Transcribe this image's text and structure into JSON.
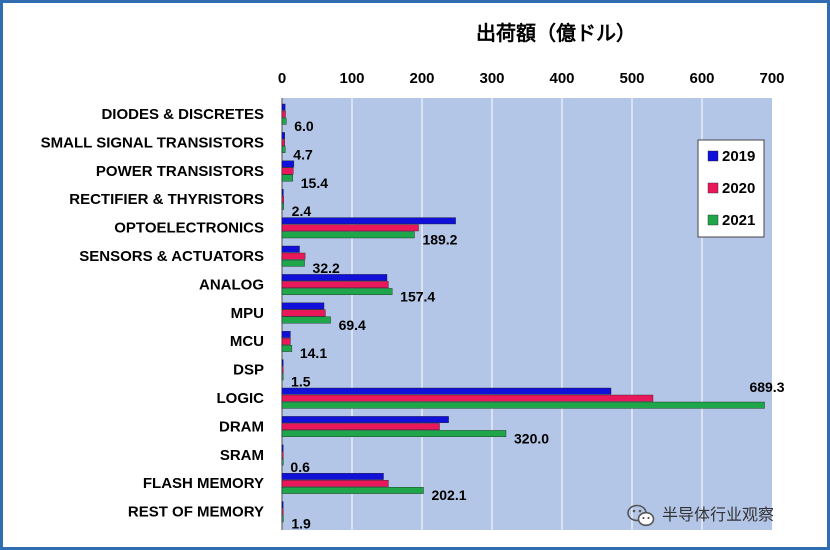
{
  "chart_data": {
    "type": "bar",
    "orientation": "horizontal",
    "title": "出荷額（億ドル）",
    "xlim": [
      0,
      700
    ],
    "xticks": [
      "0",
      "100",
      "200",
      "300",
      "400",
      "500",
      "600",
      "700"
    ],
    "grid": true,
    "legend_position": "top-right",
    "categories": [
      "DIODES & DISCRETES",
      "SMALL SIGNAL TRANSISTORS",
      "POWER TRANSISTORS",
      "RECTIFIER & THYRISTORS",
      "OPTOELECTRONICS",
      "SENSORS & ACTUATORS",
      "ANALOG",
      "MPU",
      "MCU",
      "DSP",
      "LOGIC",
      "DRAM",
      "SRAM",
      "FLASH MEMORY",
      "REST OF MEMORY"
    ],
    "series": [
      {
        "name": "2019",
        "color": "#1010d8",
        "values": [
          4.5,
          4,
          17,
          2,
          248,
          25,
          150,
          60,
          12,
          1.5,
          470,
          238,
          0.5,
          145,
          1.5
        ]
      },
      {
        "name": "2020",
        "color": "#e8185a",
        "values": [
          5,
          4,
          16,
          2.5,
          195,
          33,
          152,
          62,
          12,
          1.5,
          530,
          225,
          0.5,
          152,
          1.5
        ]
      },
      {
        "name": "2021",
        "color": "#1fa64a",
        "values": [
          6.0,
          4.7,
          15.4,
          2.4,
          189.2,
          32.2,
          157.4,
          69.4,
          14.1,
          1.5,
          689.3,
          320.0,
          0.6,
          202.1,
          1.9
        ]
      }
    ],
    "data_labels": [
      "6.0",
      "4.7",
      "15.4",
      "2.4",
      "189.2",
      "32.2",
      "157.4",
      "69.4",
      "14.1",
      "1.5",
      "689.3",
      "320.0",
      "0.6",
      "202.1",
      "1.9"
    ]
  },
  "watermark": {
    "icon": "wechat-icon",
    "text": "半导体行业观察"
  },
  "colors": {
    "plot_bg": "#b4c6e7",
    "frame": "#2f6db0"
  }
}
